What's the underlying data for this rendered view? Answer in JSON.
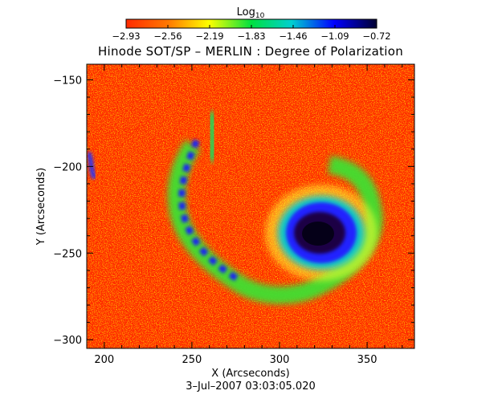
{
  "chart_data": {
    "type": "heatmap",
    "title": "Hinode SOT/SP – MERLIN : Degree of Polarization",
    "xlabel": "X (Arcseconds)",
    "ylabel": "Y (Arcseconds)",
    "xlim": [
      190,
      377
    ],
    "ylim": [
      -305,
      -141
    ],
    "x_ticks": [
      200,
      250,
      300,
      350
    ],
    "y_ticks": [
      -150,
      -200,
      -250,
      -300
    ],
    "x_tick_labels": [
      "200",
      "250",
      "300",
      "350"
    ],
    "y_tick_labels": [
      "−150",
      "−200",
      "−250",
      "−300"
    ],
    "colorbar": {
      "label_main": "Log",
      "label_sub": "10",
      "range": [
        -2.93,
        -0.72
      ],
      "tick_labels": [
        "−2.93",
        "−2.56",
        "−2.19",
        "−1.83",
        "−1.46",
        "−1.09",
        "−0.72"
      ],
      "colormap": [
        "#ff2a00",
        "#ff7a00",
        "#ffff00",
        "#00e040",
        "#00d0d0",
        "#0000ff",
        "#000030"
      ]
    },
    "features": [
      {
        "kind": "sunspot umbra",
        "x": 317,
        "y": -240,
        "log10_dop": -0.8
      },
      {
        "kind": "penumbra",
        "x": 317,
        "y": -240,
        "log10_dop": -1.2
      },
      {
        "kind": "plage network",
        "x": 250,
        "y": -240,
        "log10_dop": -1.6
      }
    ],
    "date_label": "3–Jul–2007 03:03:05.020"
  }
}
